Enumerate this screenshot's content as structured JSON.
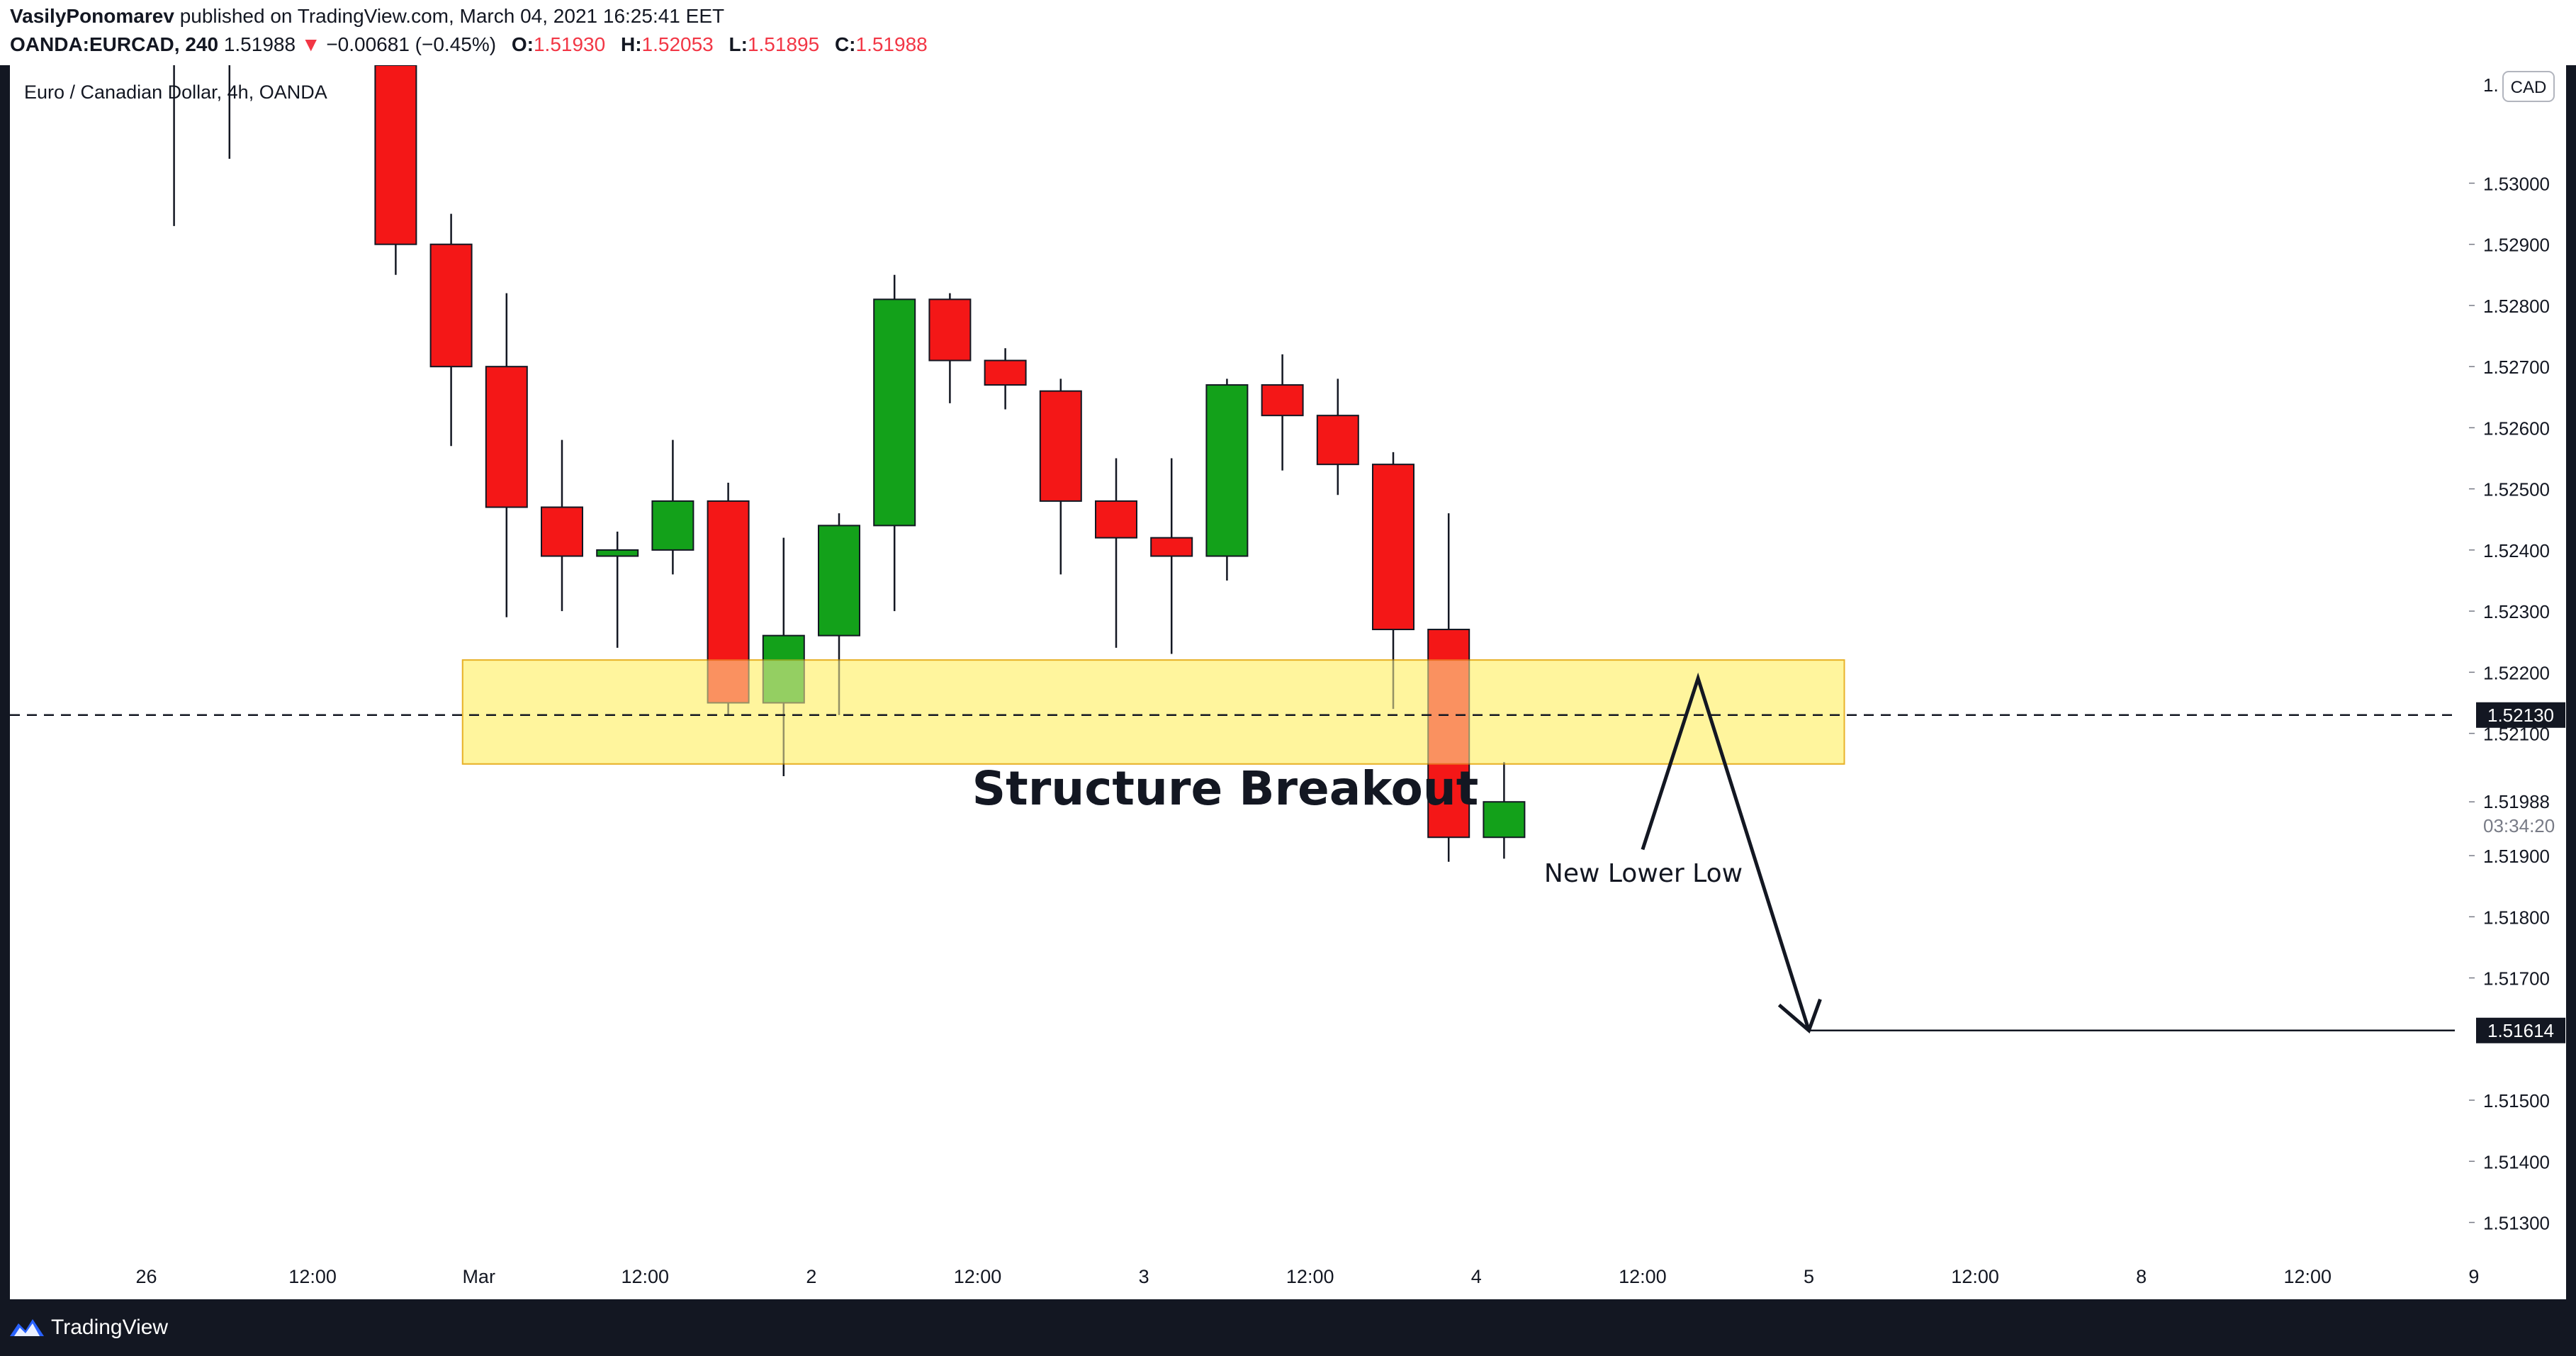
{
  "header": {
    "author": "VasilyPonomarev",
    "published_text": "published on TradingView.com, March 04, 2021 16:25:41 EET",
    "symbol": "OANDA:EURCAD, 240",
    "last_price": "1.51988",
    "change_arrow": "▼",
    "change": "−0.00681 (−0.45%)",
    "o_label": "O:",
    "o_value": "1.51930",
    "h_label": "H:",
    "h_value": "1.52053",
    "l_label": "L:",
    "l_value": "1.51895",
    "c_label": "C:",
    "c_value": "1.51988"
  },
  "chart_data": {
    "type": "candlestick",
    "title": "Euro / Canadian Dollar, 4h, OANDA",
    "currency_badge": "CAD",
    "y_ticks": [
      "1.53000",
      "1.52900",
      "1.52800",
      "1.52700",
      "1.52600",
      "1.52500",
      "1.52400",
      "1.52300",
      "1.52200",
      "1.52100",
      "1.51900",
      "1.51800",
      "1.51700",
      "1.51500",
      "1.51400",
      "1.51300"
    ],
    "y_top_partial_label": "1.",
    "ylim": [
      1.51245,
      1.53193
    ],
    "x_labels": [
      {
        "label": "26",
        "bar": -2.5
      },
      {
        "label": "12:00",
        "bar": 0.5
      },
      {
        "label": "Mar",
        "bar": 3.5
      },
      {
        "label": "12:00",
        "bar": 6.5
      },
      {
        "label": "2",
        "bar": 9.5
      },
      {
        "label": "12:00",
        "bar": 12.5
      },
      {
        "label": "3",
        "bar": 15.5
      },
      {
        "label": "12:00",
        "bar": 18.5
      },
      {
        "label": "4",
        "bar": 21.5
      },
      {
        "label": "12:00",
        "bar": 24.5
      },
      {
        "label": "5",
        "bar": 27.5
      },
      {
        "label": "12:00",
        "bar": 30.5
      },
      {
        "label": "8",
        "bar": 33.5
      },
      {
        "label": "12:00",
        "bar": 36.5
      },
      {
        "label": "9",
        "bar": 39.5
      }
    ],
    "candles": [
      {
        "o": 1.533,
        "h": 1.5335,
        "l": 1.5293,
        "c": 1.5325
      },
      {
        "o": 1.532,
        "h": 1.533,
        "l": 1.5304,
        "c": 1.533
      },
      {
        "o": null,
        "h": null,
        "l": null,
        "c": null
      },
      {
        "o": null,
        "h": null,
        "l": null,
        "c": null
      },
      {
        "o": 1.53193,
        "h": 1.53193,
        "l": 1.5285,
        "c": 1.529
      },
      {
        "o": 1.529,
        "h": 1.5295,
        "l": 1.5257,
        "c": 1.527
      },
      {
        "o": 1.527,
        "h": 1.5282,
        "l": 1.5229,
        "c": 1.5247
      },
      {
        "o": 1.5247,
        "h": 1.5258,
        "l": 1.523,
        "c": 1.5239
      },
      {
        "o": 1.5239,
        "h": 1.5243,
        "l": 1.5224,
        "c": 1.524
      },
      {
        "o": 1.524,
        "h": 1.5258,
        "l": 1.5236,
        "c": 1.5248
      },
      {
        "o": 1.5248,
        "h": 1.5251,
        "l": 1.5213,
        "c": 1.5215
      },
      {
        "o": 1.5215,
        "h": 1.5242,
        "l": 1.5203,
        "c": 1.5226
      },
      {
        "o": 1.5226,
        "h": 1.5246,
        "l": 1.5213,
        "c": 1.5244
      },
      {
        "o": 1.5244,
        "h": 1.5285,
        "l": 1.523,
        "c": 1.5281
      },
      {
        "o": 1.5281,
        "h": 1.5282,
        "l": 1.5264,
        "c": 1.5271
      },
      {
        "o": 1.5271,
        "h": 1.5273,
        "l": 1.5263,
        "c": 1.5267
      },
      {
        "o": 1.5266,
        "h": 1.5268,
        "l": 1.5236,
        "c": 1.5248
      },
      {
        "o": 1.5248,
        "h": 1.5255,
        "l": 1.5224,
        "c": 1.5242
      },
      {
        "o": 1.5242,
        "h": 1.5255,
        "l": 1.5223,
        "c": 1.5239
      },
      {
        "o": 1.5239,
        "h": 1.5268,
        "l": 1.5235,
        "c": 1.5267
      },
      {
        "o": 1.5267,
        "h": 1.5272,
        "l": 1.5253,
        "c": 1.5262
      },
      {
        "o": 1.5262,
        "h": 1.5268,
        "l": 1.5249,
        "c": 1.5254
      },
      {
        "o": 1.5254,
        "h": 1.5256,
        "l": 1.5214,
        "c": 1.5227
      },
      {
        "o": 1.5227,
        "h": 1.5246,
        "l": 1.5189,
        "c": 1.5193
      },
      {
        "o": 1.5193,
        "h": 1.52053,
        "l": 1.51895,
        "c": 1.51988
      }
    ],
    "zone": {
      "bar_from": 4.0,
      "bar_to": 27.5,
      "price_high": 1.5222,
      "price_low": 1.5205
    },
    "dashed_level": 1.5213,
    "projection": {
      "points": [
        {
          "bar": 24.5,
          "price": 1.5191
        },
        {
          "bar": 25.5,
          "price": 1.5219
        },
        {
          "bar": 27.5,
          "price": 1.51614
        }
      ],
      "target_line_to_bar": 40.5
    },
    "annotations": {
      "structure": "Structure Breakout",
      "lower_low": "New Lower Low"
    },
    "price_labels": {
      "dashed": "1.52130",
      "last_price": "1.51988",
      "countdown": "03:34:20",
      "target": "1.51614"
    },
    "colors": {
      "up": "#13a11a",
      "down": "#f41717",
      "zone": "#fff59d",
      "zone_border": "#e8b22a"
    }
  },
  "footer": {
    "brand": "TradingView"
  }
}
